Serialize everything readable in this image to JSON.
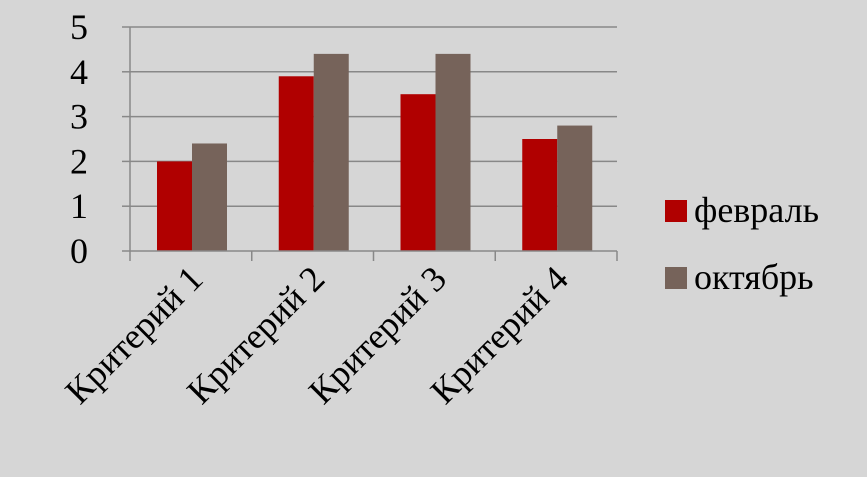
{
  "chart_data": {
    "type": "bar",
    "categories": [
      "Критерий 1",
      "Критерий 2",
      "Критерий 3",
      "Критерий 4"
    ],
    "series": [
      {
        "name": "февраль",
        "values": [
          2.0,
          3.9,
          3.5,
          2.5
        ],
        "color": "#b00000"
      },
      {
        "name": "октябрь",
        "values": [
          2.4,
          4.4,
          4.4,
          2.8
        ],
        "color": "#76635a"
      }
    ],
    "y_ticks": [
      "0",
      "1",
      "2",
      "3",
      "4",
      "5"
    ],
    "ylim": [
      0,
      5
    ],
    "grid": true,
    "legend_position": "right",
    "colors": {
      "background": "#d6d6d6",
      "gridline": "#888888",
      "axis": "#888888"
    }
  }
}
